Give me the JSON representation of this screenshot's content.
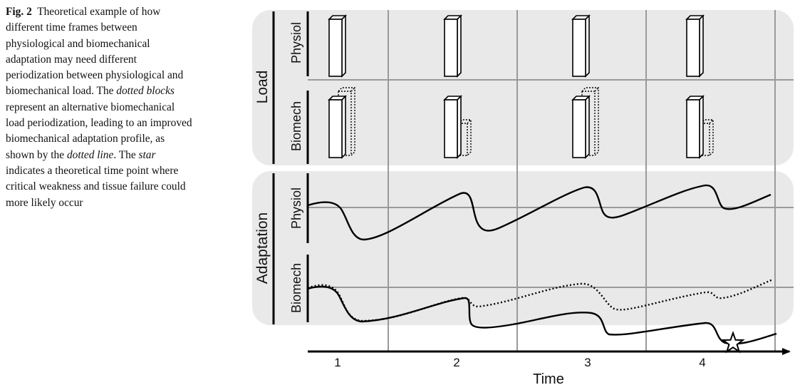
{
  "caption": {
    "fig_label": "Fig. 2",
    "part1": "Theoretical example of how different time frames between physiological and biomechanical adaptation may need different periodization between physiological and biomechanical load. The ",
    "em1": "dotted blocks",
    "part2": " represent an alternative biomechanical load periodization, leading to an improved biomechanical adaptation profile, as shown by the ",
    "em2": "dotted line",
    "part3": ". The ",
    "em3": "star",
    "part4": " indicates a theoretical time point where critical weakness and tissue failure could more likely occur"
  },
  "figure": {
    "panels": {
      "load": "Load",
      "adaptation": "Adaptation"
    },
    "rows": {
      "load_physiol": "Physiol",
      "load_biomech": "Biomech",
      "adapt_physiol": "Physiol",
      "adapt_biomech": "Biomech"
    },
    "time_axis": {
      "label": "Time",
      "ticks": [
        "1",
        "2",
        "3",
        "4"
      ]
    },
    "colors": {
      "panel_fill": "#e9e9e9",
      "grid": "#9a9a9a",
      "line": "#000000"
    }
  }
}
